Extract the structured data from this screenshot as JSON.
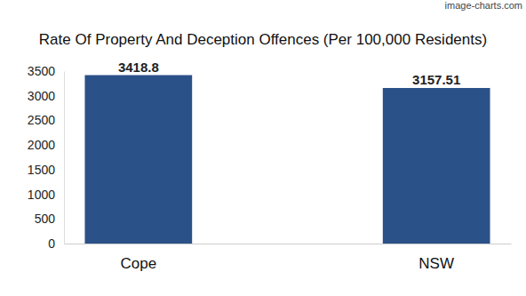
{
  "chart_data": {
    "type": "bar",
    "title": "Rate Of Property And Deception Offences (Per 100,000 Residents)",
    "annotations": [
      "image-charts.com"
    ],
    "categories": [
      "Cope",
      "NSW"
    ],
    "values": [
      3418.8,
      3157.51
    ],
    "color": "#2b5189",
    "ylim": [
      0,
      3500
    ],
    "yticks": [
      0,
      500,
      1000,
      1500,
      2000,
      2500,
      3000,
      3500
    ],
    "grid": false,
    "data_labels": true
  }
}
